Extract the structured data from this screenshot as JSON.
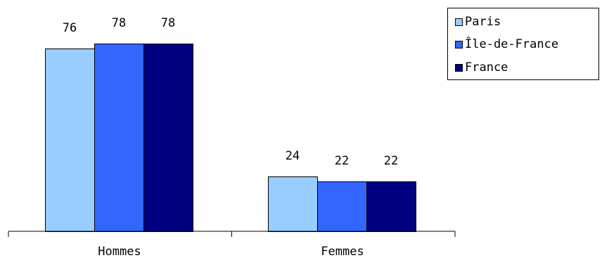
{
  "chart_data": {
    "type": "bar",
    "categories": [
      "Hommes",
      "Femmes"
    ],
    "series": [
      {
        "name": "Paris",
        "values": [
          76,
          24
        ],
        "color": "#99CCFF"
      },
      {
        "name": "Île-de-France",
        "values": [
          78,
          22
        ],
        "color": "#3366FF"
      },
      {
        "name": "France",
        "values": [
          78,
          22
        ],
        "color": "#000080"
      }
    ],
    "ylim": [
      0,
      100
    ],
    "grid": false,
    "legend_position": "top-right",
    "data_labels": true
  }
}
